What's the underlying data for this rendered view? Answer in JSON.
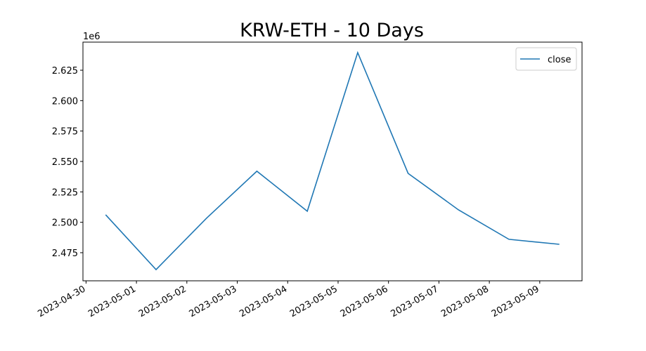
{
  "chart_data": {
    "type": "line",
    "title": "KRW-ETH - 10 Days",
    "y_offset_label": "1e6",
    "x": [
      "2023-04-30 09:20",
      "2023-05-01 09:20",
      "2023-05-02 09:20",
      "2023-05-03 09:20",
      "2023-05-04 09:20",
      "2023-05-05 09:20",
      "2023-05-06 09:20",
      "2023-05-07 09:20",
      "2023-05-08 09:20",
      "2023-05-09 09:20"
    ],
    "series": [
      {
        "name": "close",
        "color": "#1f77b4",
        "values": [
          2506200,
          2461100,
          2503300,
          2542000,
          2509100,
          2639500,
          2540200,
          2510200,
          2486000,
          2481900
        ]
      }
    ],
    "xlim": [
      "2023-04-29 22:32",
      "2023-05-09 20:08"
    ],
    "xticks": [
      "2023-04-30",
      "2023-05-01",
      "2023-05-02",
      "2023-05-03",
      "2023-05-04",
      "2023-05-05",
      "2023-05-06",
      "2023-05-07",
      "2023-05-08",
      "2023-05-09"
    ],
    "ylim": [
      2451900,
      2648100
    ],
    "yticks": [
      {
        "value": 2475000,
        "label": "2.475"
      },
      {
        "value": 2500000,
        "label": "2.500"
      },
      {
        "value": 2525000,
        "label": "2.525"
      },
      {
        "value": 2550000,
        "label": "2.550"
      },
      {
        "value": 2575000,
        "label": "2.575"
      },
      {
        "value": 2600000,
        "label": "2.600"
      },
      {
        "value": 2625000,
        "label": "2.625"
      }
    ],
    "legend": "upper right",
    "grid": false
  }
}
